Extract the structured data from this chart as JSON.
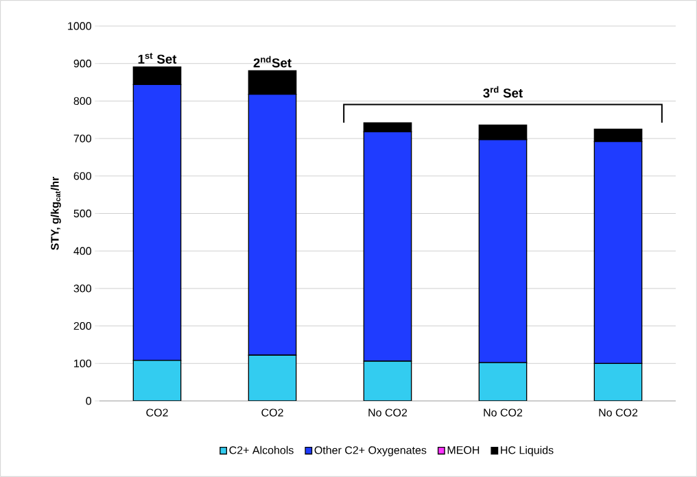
{
  "chart_data": {
    "type": "bar",
    "stacked": true,
    "ylabel": "STY, g/kg$_{cat}$/hr",
    "categories": [
      "CO2",
      "CO2",
      "No CO2",
      "No CO2",
      "No CO2"
    ],
    "series": [
      {
        "name": "C2+ Alcohols",
        "color": "#33ccf0",
        "values": [
          108,
          122,
          106,
          102,
          100
        ]
      },
      {
        "name": "Other C2+ Oxygenates",
        "color": "#1f3cff",
        "values": [
          736,
          696,
          612,
          595,
          592
        ]
      },
      {
        "name": "MEOH",
        "color": "#ff33ff",
        "values": [
          0,
          0,
          0,
          0,
          0
        ]
      },
      {
        "name": "HC Liquids",
        "color": "#000000",
        "values": [
          47,
          63,
          24,
          39,
          33
        ]
      }
    ],
    "ylim": [
      0,
      1000
    ],
    "yticks": [
      0,
      100,
      200,
      300,
      400,
      500,
      600,
      700,
      800,
      900,
      1000
    ],
    "grid": "y",
    "legend": "bottom",
    "annotations": [
      "1$^{st}$ Set",
      "2$^{nd}$Set",
      "3$^{rd}$ Set"
    ]
  }
}
